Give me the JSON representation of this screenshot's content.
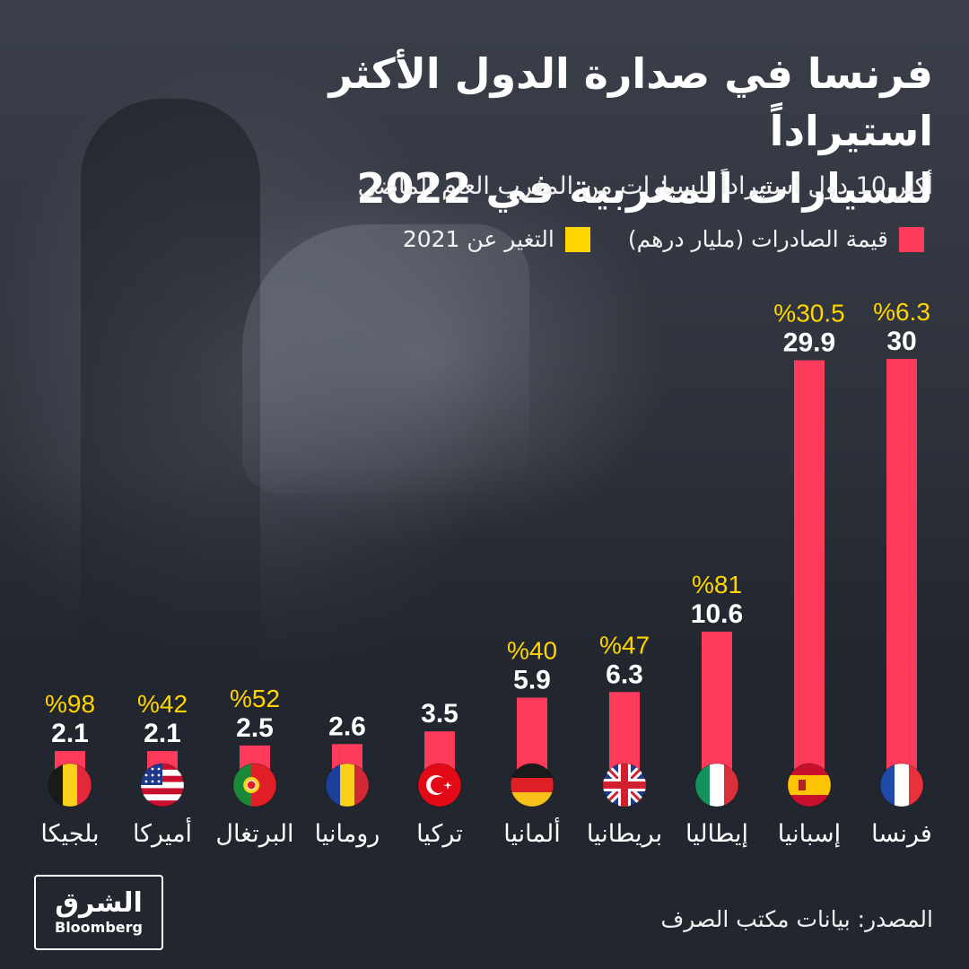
{
  "header": {
    "title_line1": "فرنسا في صدارة الدول الأكثر استيراداً",
    "title_line2": "للسيارات المغربية في 2022",
    "subtitle": "أكبر 10 دول استيراداً للسيارات من المغرب العام الماضي"
  },
  "legend": {
    "exports_label": "قيمة الصادرات (مليار درهم)",
    "change_label": "التغير عن 2021"
  },
  "footer": {
    "source": "المصدر: بيانات مكتب الصرف",
    "logo_brand": "الشرق",
    "logo_partner": "Bloomberg"
  },
  "colors": {
    "bar": "#ff3b5c",
    "change_text": "#ffd500",
    "value_text": "#ffffff",
    "background": "#22262f"
  },
  "chart_data": {
    "type": "bar",
    "categories": [
      "فرنسا",
      "إسبانيا",
      "إيطاليا",
      "بريطانيا",
      "ألمانيا",
      "تركيا",
      "رومانيا",
      "البرتغال",
      "أميركا",
      "بلجيكا"
    ],
    "values": [
      30,
      29.9,
      10.6,
      6.3,
      5.9,
      3.5,
      2.6,
      2.5,
      2.1,
      2.1
    ],
    "value_labels": [
      "30",
      "29.9",
      "10.6",
      "6.3",
      "5.9",
      "3.5",
      "2.6",
      "2.5",
      "2.1",
      "2.1"
    ],
    "change_labels": [
      "%6.3",
      "%30.5",
      "%81",
      "%47",
      "%40",
      "",
      "",
      "%52",
      "%42",
      "%98"
    ],
    "flags": [
      "france-flag-icon",
      "spain-flag-icon",
      "italy-flag-icon",
      "uk-flag-icon",
      "germany-flag-icon",
      "turkey-flag-icon",
      "romania-flag-icon",
      "portugal-flag-icon",
      "usa-flag-icon",
      "belgium-flag-icon"
    ],
    "series": [
      {
        "name": "قيمة الصادرات (مليار درهم)",
        "values": [
          30,
          29.9,
          10.6,
          6.3,
          5.9,
          3.5,
          2.6,
          2.5,
          2.1,
          2.1
        ]
      }
    ],
    "ylim": [
      0,
      30
    ],
    "category_order": "right-to-left",
    "grid": false,
    "legend_position": "top-right"
  }
}
